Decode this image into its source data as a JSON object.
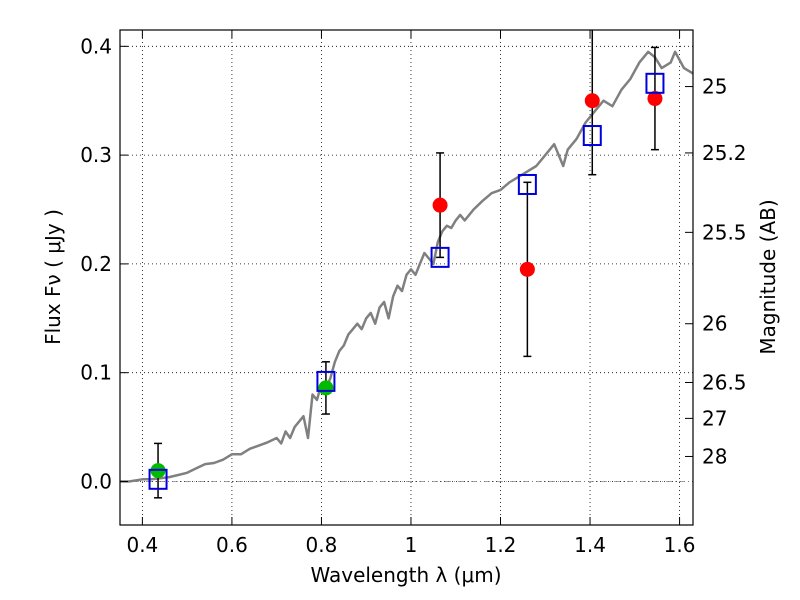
{
  "chart_data": {
    "type": "scatter",
    "xlabel": "Wavelength  λ (μm)",
    "ylabel": "Flux  Fν  ( μJy )",
    "y2label": "Magnitude (AB)",
    "xlim": [
      0.35,
      1.63
    ],
    "ylim": [
      -0.04,
      0.415
    ],
    "grid": true,
    "x_ticks": [
      0.4,
      0.6,
      0.8,
      1.0,
      1.2,
      1.4,
      1.6
    ],
    "x_tick_labels": [
      "0.4",
      "0.6",
      "0.8",
      "1",
      "1.2",
      "1.4",
      "1.6"
    ],
    "y_ticks": [
      0.0,
      0.1,
      0.2,
      0.3,
      0.4
    ],
    "y_tick_labels": [
      "0.0",
      "0.1",
      "0.2",
      "0.3",
      "0.4"
    ],
    "y2_ticks": [
      {
        "label": "25",
        "flux": 0.363
      },
      {
        "label": "25.2",
        "flux": 0.302
      },
      {
        "label": "25.5",
        "flux": 0.229
      },
      {
        "label": "26",
        "flux": 0.145
      },
      {
        "label": "26.5",
        "flux": 0.091
      },
      {
        "label": "27",
        "flux": 0.058
      },
      {
        "label": "28",
        "flux": 0.023
      }
    ],
    "series": [
      {
        "kind": "line",
        "color": "#808080",
        "x": [
          0.35,
          0.37,
          0.4,
          0.42,
          0.44,
          0.46,
          0.48,
          0.5,
          0.52,
          0.54,
          0.56,
          0.58,
          0.6,
          0.62,
          0.64,
          0.66,
          0.68,
          0.7,
          0.71,
          0.72,
          0.73,
          0.74,
          0.75,
          0.76,
          0.77,
          0.78,
          0.79,
          0.8,
          0.81,
          0.82,
          0.83,
          0.84,
          0.85,
          0.86,
          0.87,
          0.88,
          0.89,
          0.9,
          0.91,
          0.92,
          0.93,
          0.94,
          0.95,
          0.96,
          0.97,
          0.98,
          0.99,
          1.0,
          1.01,
          1.02,
          1.03,
          1.04,
          1.05,
          1.06,
          1.07,
          1.08,
          1.09,
          1.1,
          1.11,
          1.12,
          1.14,
          1.16,
          1.18,
          1.2,
          1.22,
          1.24,
          1.26,
          1.28,
          1.3,
          1.32,
          1.34,
          1.35,
          1.37,
          1.39,
          1.41,
          1.43,
          1.45,
          1.47,
          1.49,
          1.51,
          1.53,
          1.545,
          1.56,
          1.58,
          1.59,
          1.61,
          1.63
        ],
        "y": [
          0.0,
          0.0,
          0.002,
          0.002,
          0.003,
          0.004,
          0.006,
          0.008,
          0.012,
          0.016,
          0.017,
          0.02,
          0.025,
          0.025,
          0.03,
          0.033,
          0.036,
          0.04,
          0.035,
          0.046,
          0.04,
          0.05,
          0.055,
          0.06,
          0.04,
          0.08,
          0.075,
          0.09,
          0.085,
          0.095,
          0.11,
          0.12,
          0.125,
          0.135,
          0.14,
          0.145,
          0.14,
          0.15,
          0.155,
          0.145,
          0.16,
          0.165,
          0.15,
          0.17,
          0.18,
          0.175,
          0.19,
          0.195,
          0.19,
          0.2,
          0.21,
          0.205,
          0.2,
          0.22,
          0.23,
          0.235,
          0.233,
          0.24,
          0.245,
          0.24,
          0.25,
          0.258,
          0.265,
          0.268,
          0.275,
          0.28,
          0.285,
          0.29,
          0.3,
          0.31,
          0.29,
          0.305,
          0.315,
          0.33,
          0.34,
          0.35,
          0.345,
          0.36,
          0.37,
          0.385,
          0.395,
          0.39,
          0.38,
          0.385,
          0.395,
          0.38,
          0.375
        ]
      },
      {
        "kind": "points",
        "marker": "circle",
        "color": "#00bb00",
        "x": [
          0.435,
          0.81
        ],
        "y": [
          0.01,
          0.086
        ],
        "yerr": [
          0.025,
          0.024
        ]
      },
      {
        "kind": "points",
        "marker": "circle",
        "color": "#ff0000",
        "x": [
          1.065,
          1.26,
          1.405,
          1.545
        ],
        "y": [
          0.254,
          0.195,
          0.35,
          0.352
        ],
        "yerr": [
          0.048,
          0.08,
          0.068,
          0.047
        ]
      },
      {
        "kind": "points",
        "marker": "open-square",
        "color": "#0000dd",
        "x": [
          0.435,
          0.81,
          1.065,
          1.26,
          1.405,
          1.545
        ],
        "y": [
          0.002,
          0.092,
          0.206,
          0.273,
          0.318,
          0.366
        ]
      }
    ]
  }
}
